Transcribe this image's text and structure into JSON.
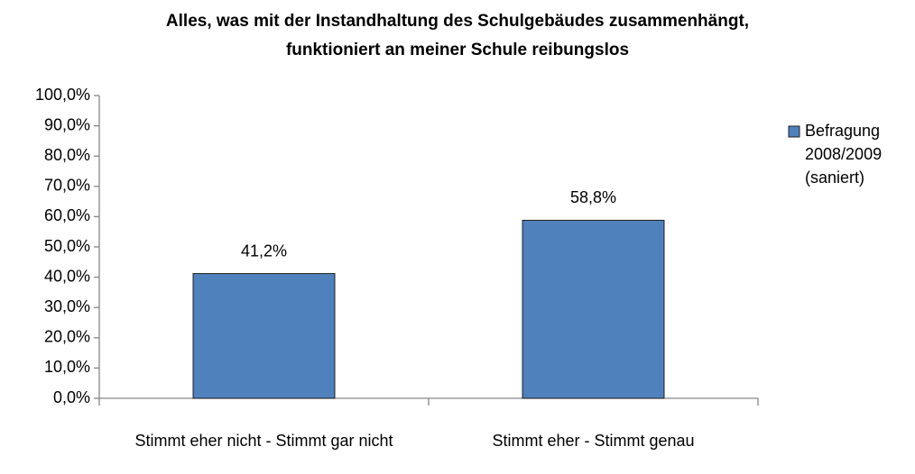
{
  "chart_data": {
    "type": "bar",
    "title": "Alles, was mit der Instandhaltung des Schulgebäudes zusammenhängt, funktioniert an meiner Schule reibungslos",
    "categories": [
      "Stimmt eher nicht - Stimmt gar nicht",
      "Stimmt eher - Stimmt genau"
    ],
    "series": [
      {
        "name": "Befragung 2008/2009 (saniert)",
        "color": "#4f81bd",
        "values": [
          41.2,
          58.8
        ],
        "value_labels": [
          "41,2%",
          "58,8%"
        ]
      }
    ],
    "ylim": [
      0,
      100
    ],
    "yticks": [
      {
        "value": 0,
        "label": "0,0%"
      },
      {
        "value": 10,
        "label": "10,0%"
      },
      {
        "value": 20,
        "label": "20,0%"
      },
      {
        "value": 30,
        "label": "30,0%"
      },
      {
        "value": 40,
        "label": "40,0%"
      },
      {
        "value": 50,
        "label": "50,0%"
      },
      {
        "value": 60,
        "label": "60,0%"
      },
      {
        "value": 70,
        "label": "70,0%"
      },
      {
        "value": 80,
        "label": "80,0%"
      },
      {
        "value": 90,
        "label": "90,0%"
      },
      {
        "value": 100,
        "label": "100,0%"
      }
    ],
    "grid": false,
    "legend": "right"
  }
}
